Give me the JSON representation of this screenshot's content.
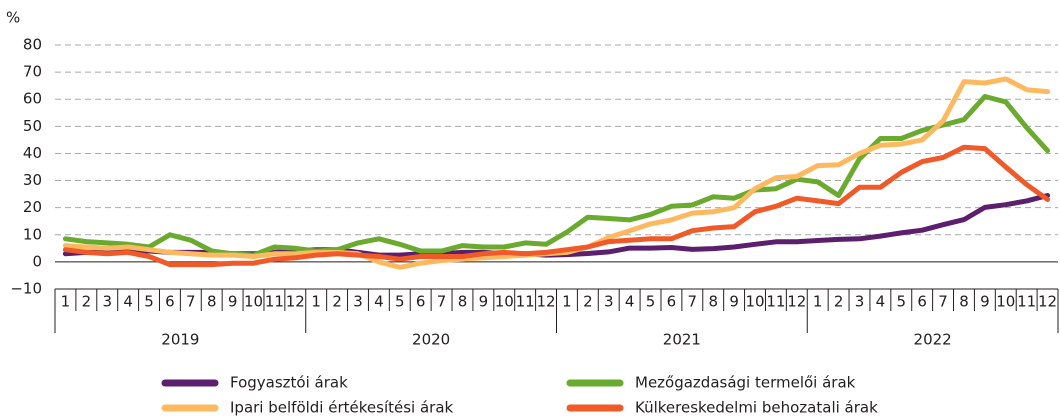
{
  "chart_data": {
    "type": "line",
    "y_axis_label": "%",
    "categories": [
      "1",
      "2",
      "3",
      "4",
      "5",
      "6",
      "7",
      "8",
      "9",
      "10",
      "11",
      "12",
      "1",
      "2",
      "3",
      "4",
      "5",
      "6",
      "7",
      "8",
      "9",
      "10",
      "11",
      "12",
      "1",
      "2",
      "3",
      "4",
      "5",
      "6",
      "7",
      "8",
      "9",
      "10",
      "11",
      "12",
      "1",
      "2",
      "3",
      "4",
      "5",
      "6",
      "7",
      "8",
      "9",
      "10",
      "11",
      "12"
    ],
    "year_labels": [
      "2019",
      "2020",
      "2021",
      "2022"
    ],
    "ylim": [
      -10,
      80
    ],
    "yticks": [
      {
        "value": -10,
        "label": "−10"
      },
      0,
      10,
      20,
      30,
      40,
      50,
      60,
      70,
      80
    ],
    "grid": true,
    "series": [
      {
        "name": "Fogyasztói árak",
        "color": "#5b1f6e",
        "values": [
          3,
          3.5,
          3.5,
          4,
          4,
          3.5,
          3.5,
          3.5,
          3,
          3,
          3.5,
          4,
          4.5,
          4.5,
          3.5,
          2.5,
          2.5,
          3,
          3,
          3.5,
          3.5,
          3,
          3,
          2.5,
          2.7,
          3.1,
          3.7,
          5.1,
          5.1,
          5.3,
          4.6,
          4.9,
          5.5,
          6.5,
          7.4,
          7.4,
          7.9,
          8.3,
          8.5,
          9.5,
          10.7,
          11.7,
          13.7,
          15.6,
          20.1,
          21.1,
          22.5,
          24.5
        ]
      },
      {
        "name": "Mezőgazdasági termelői árak",
        "color": "#6aaa2e",
        "values": [
          8.5,
          7.5,
          7,
          6.5,
          5.5,
          10,
          8,
          4,
          3,
          2.5,
          5.5,
          5,
          4,
          4.5,
          7,
          8.5,
          6.5,
          4,
          4,
          6,
          5.5,
          5.5,
          7,
          6.5,
          11,
          16.5,
          16,
          15.5,
          17.5,
          20.5,
          21,
          24,
          23.5,
          26.5,
          27,
          30.5,
          29.5,
          24.5,
          38,
          45.5,
          45.5,
          48.5,
          50.5,
          52.5,
          61,
          59,
          49.5,
          41
        ]
      },
      {
        "name": "Ipari belföldi értékesítési árak",
        "color": "#fdb960",
        "values": [
          6,
          5.5,
          5,
          5.5,
          4.5,
          3.5,
          3,
          2.5,
          2.5,
          2,
          3,
          3,
          3.5,
          3.5,
          3,
          0,
          -2,
          -0.5,
          0.5,
          1,
          1.5,
          2,
          2.5,
          3,
          3.5,
          5.5,
          9,
          11.5,
          14,
          15.5,
          18,
          18.5,
          20,
          27,
          31,
          31.5,
          35.5,
          35.8,
          40,
          43,
          43.5,
          45,
          52,
          66.5,
          66,
          67.5,
          63.5,
          62.8
        ]
      },
      {
        "name": "Külkereskedelmi behozatali árak",
        "color": "#f05a28",
        "values": [
          4.5,
          3.5,
          3,
          3.5,
          2,
          -1,
          -1,
          -1,
          -0.5,
          -0.5,
          1,
          1.5,
          2.5,
          3,
          2.5,
          2,
          1,
          2,
          2,
          2,
          3,
          3.5,
          3,
          3.5,
          4.5,
          5.5,
          7.5,
          8,
          8.5,
          8.5,
          11.5,
          12.5,
          13,
          18.5,
          20.5,
          23.5,
          22.5,
          21.5,
          27.5,
          27.5,
          33,
          37,
          38.5,
          42.3,
          41.8,
          35,
          28.5,
          23
        ]
      }
    ]
  }
}
